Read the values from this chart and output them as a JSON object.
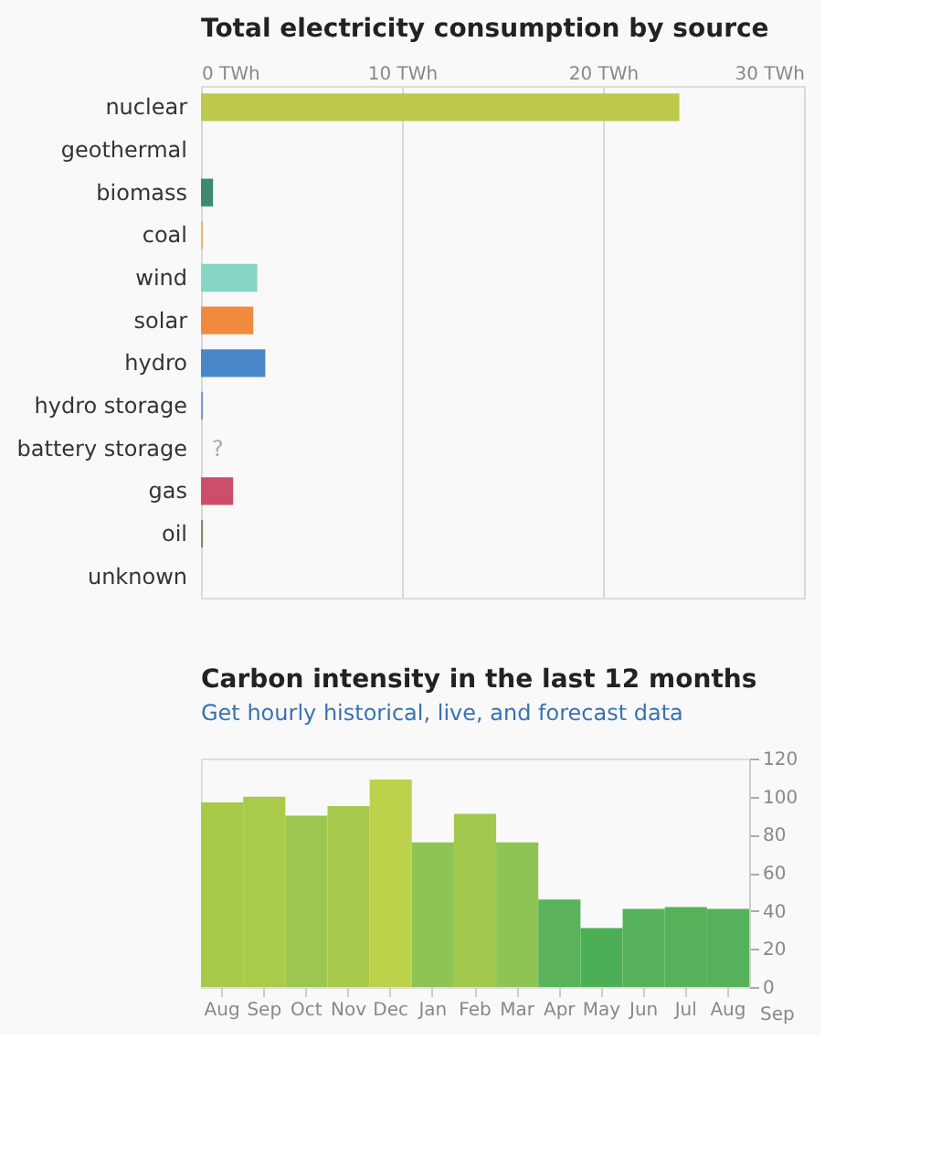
{
  "chart_data": [
    {
      "type": "bar",
      "orientation": "horizontal",
      "title": "Total electricity consumption by source",
      "categories": [
        "nuclear",
        "geothermal",
        "biomass",
        "coal",
        "wind",
        "solar",
        "hydro",
        "hydro storage",
        "battery storage",
        "gas",
        "oil",
        "unknown"
      ],
      "values": [
        23.8,
        0,
        0.6,
        0.1,
        2.8,
        2.6,
        3.2,
        0.1,
        null,
        1.6,
        0.1,
        0
      ],
      "colors": [
        "#bcc94a",
        "#bcc94a",
        "#3e8a6e",
        "#e8b96a",
        "#86d6c4",
        "#f08a3e",
        "#4a87c8",
        "#7a9ad0",
        "#cccccc",
        "#cc4e6a",
        "#8a8a6e",
        "#999999"
      ],
      "xlim": [
        0,
        30
      ],
      "xticks": [
        {
          "value": 0,
          "label": "0 TWh"
        },
        {
          "value": 10,
          "label": "10 TWh"
        },
        {
          "value": 20,
          "label": "20 TWh"
        },
        {
          "value": 30,
          "label": "30 TWh"
        }
      ],
      "grid": "x",
      "annotations": [
        "?"
      ]
    },
    {
      "type": "bar",
      "title": "Carbon intensity in the last 12 months",
      "subtitle": "Get hourly historical, live, and forecast data",
      "categories": [
        "Aug",
        "Sep",
        "Oct",
        "Nov",
        "Dec",
        "Jan",
        "Feb",
        "Mar",
        "Apr",
        "May",
        "Jun",
        "Jul",
        "Aug"
      ],
      "values": [
        97,
        100,
        90,
        95,
        109,
        76,
        91,
        76,
        46,
        31,
        41,
        42,
        41
      ],
      "colors": [
        "#a8c84a",
        "#aacb4a",
        "#9cc650",
        "#a6c94c",
        "#bcd24a",
        "#8ec454",
        "#a2c84e",
        "#8ec454",
        "#5ab35a",
        "#4caf56",
        "#56b25a",
        "#56b25a",
        "#56b25a"
      ],
      "ylim": [
        0,
        120
      ],
      "yticks": [
        0,
        20,
        40,
        60,
        80,
        100,
        120
      ],
      "annotations": [
        "Sep"
      ]
    }
  ]
}
